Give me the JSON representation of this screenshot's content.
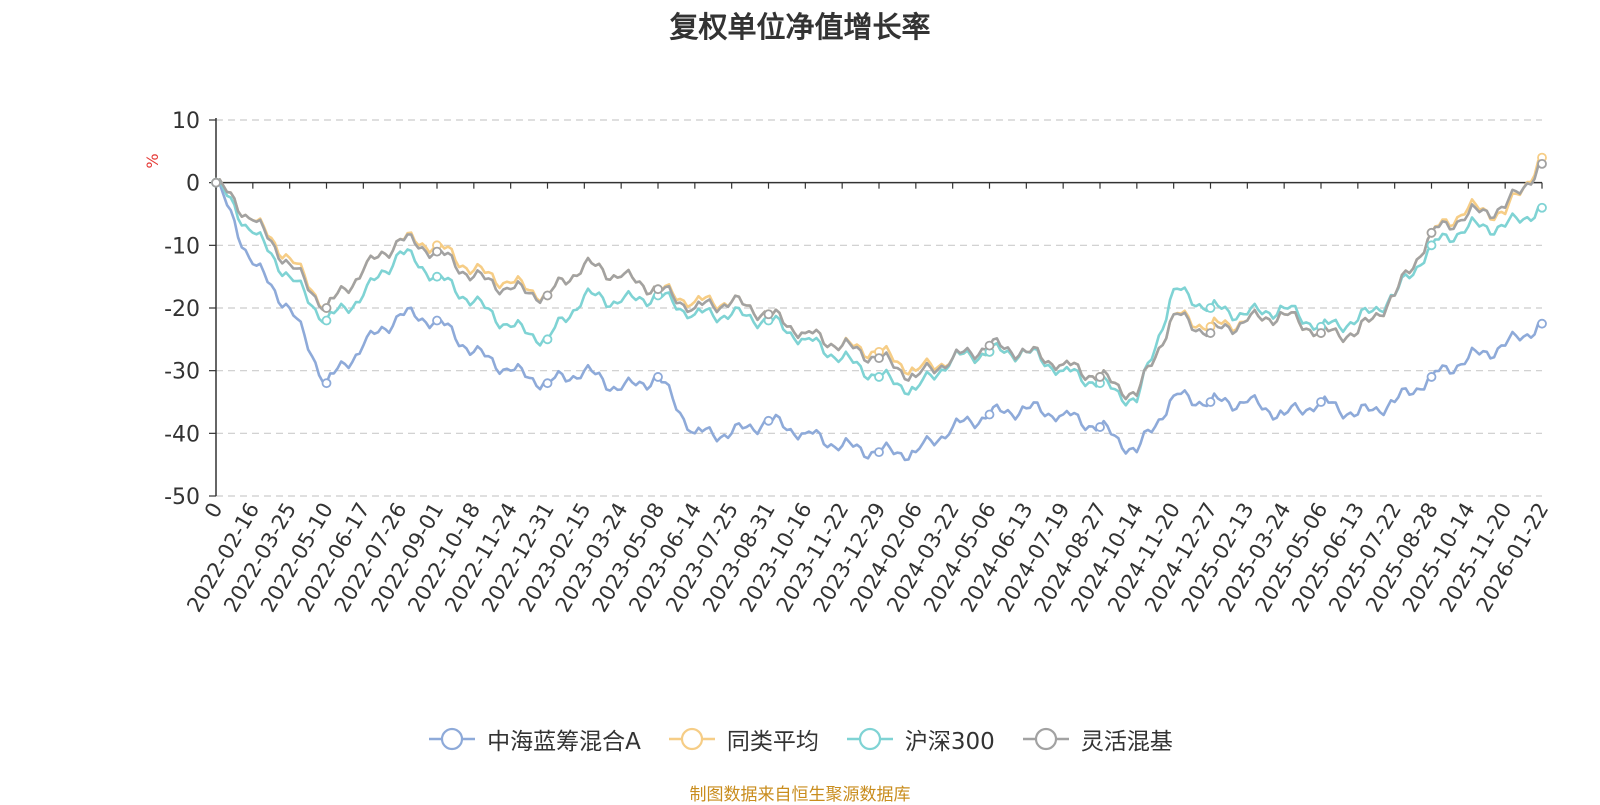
{
  "chart_data": {
    "type": "line",
    "title": "复权单位净值增长率",
    "ylabel": "%",
    "xlabel": "",
    "ylim": [
      -50,
      10
    ],
    "yticks": [
      10,
      0,
      -10,
      -20,
      -30,
      -40,
      -50
    ],
    "categories": [
      "0",
      "2022-02-16",
      "2022-03-25",
      "2022-05-10",
      "2022-06-17",
      "2022-07-26",
      "2022-09-01",
      "2022-10-18",
      "2022-11-24",
      "2022-12-31",
      "2023-02-15",
      "2023-03-24",
      "2023-05-08",
      "2023-06-14",
      "2023-07-25",
      "2023-08-31",
      "2023-10-16",
      "2023-11-22",
      "2023-12-29",
      "2024-02-06",
      "2024-03-22",
      "2024-05-06",
      "2024-06-13",
      "2024-07-19",
      "2024-08-27",
      "2024-10-14",
      "2024-11-20",
      "2024-12-27",
      "2025-02-13",
      "2025-03-24",
      "2025-05-06",
      "2025-06-13",
      "2025-07-22",
      "2025-08-28",
      "2025-10-14",
      "2025-11-20",
      "2026-01-22"
    ],
    "series": [
      {
        "name": "中海蓝筹混合A",
        "color": "#8eaad9",
        "values": [
          0,
          -13,
          -20,
          -32,
          -26,
          -21,
          -22,
          -27,
          -30,
          -32,
          -30,
          -33,
          -31,
          -40,
          -40,
          -38,
          -40,
          -42,
          -43,
          -43,
          -39,
          -37,
          -36,
          -37,
          -39,
          -43,
          -34,
          -35,
          -35,
          -37,
          -35,
          -37,
          -35,
          -31,
          -28,
          -26,
          -22.5
        ]
      },
      {
        "name": "同类平均",
        "color": "#f6cd86",
        "values": [
          0,
          -6,
          -12,
          -20,
          -14,
          -9,
          -10,
          -14,
          -16,
          -18,
          -13,
          -15,
          -17,
          -19,
          -19,
          -21,
          -24,
          -26,
          -27,
          -30,
          -28,
          -27,
          -27,
          -29,
          -31,
          -34,
          -21,
          -23,
          -22,
          -21,
          -24,
          -24,
          -18,
          -8,
          -4,
          -5,
          4
        ]
      },
      {
        "name": "沪深300",
        "color": "#7fd3d4",
        "values": [
          0,
          -8,
          -15,
          -22,
          -18,
          -11,
          -15,
          -19,
          -23,
          -25,
          -18,
          -19,
          -18,
          -21,
          -21,
          -22,
          -25,
          -28,
          -31,
          -33,
          -28,
          -27,
          -27,
          -30,
          -32,
          -35,
          -17,
          -20,
          -21,
          -20,
          -23,
          -22,
          -18,
          -10,
          -7,
          -7,
          -4
        ]
      },
      {
        "name": "灵活混基",
        "color": "#a2a2a2",
        "values": [
          0,
          -6,
          -13,
          -20,
          -14,
          -9,
          -11,
          -15,
          -17,
          -18,
          -13,
          -15,
          -17,
          -20,
          -19,
          -21,
          -24,
          -26,
          -28,
          -31,
          -28,
          -26,
          -27,
          -29,
          -31,
          -34,
          -21,
          -24,
          -22,
          -21,
          -24,
          -24,
          -18,
          -8,
          -5,
          -4,
          3
        ]
      }
    ]
  },
  "source_note": "制图数据来自恒生聚源数据库"
}
